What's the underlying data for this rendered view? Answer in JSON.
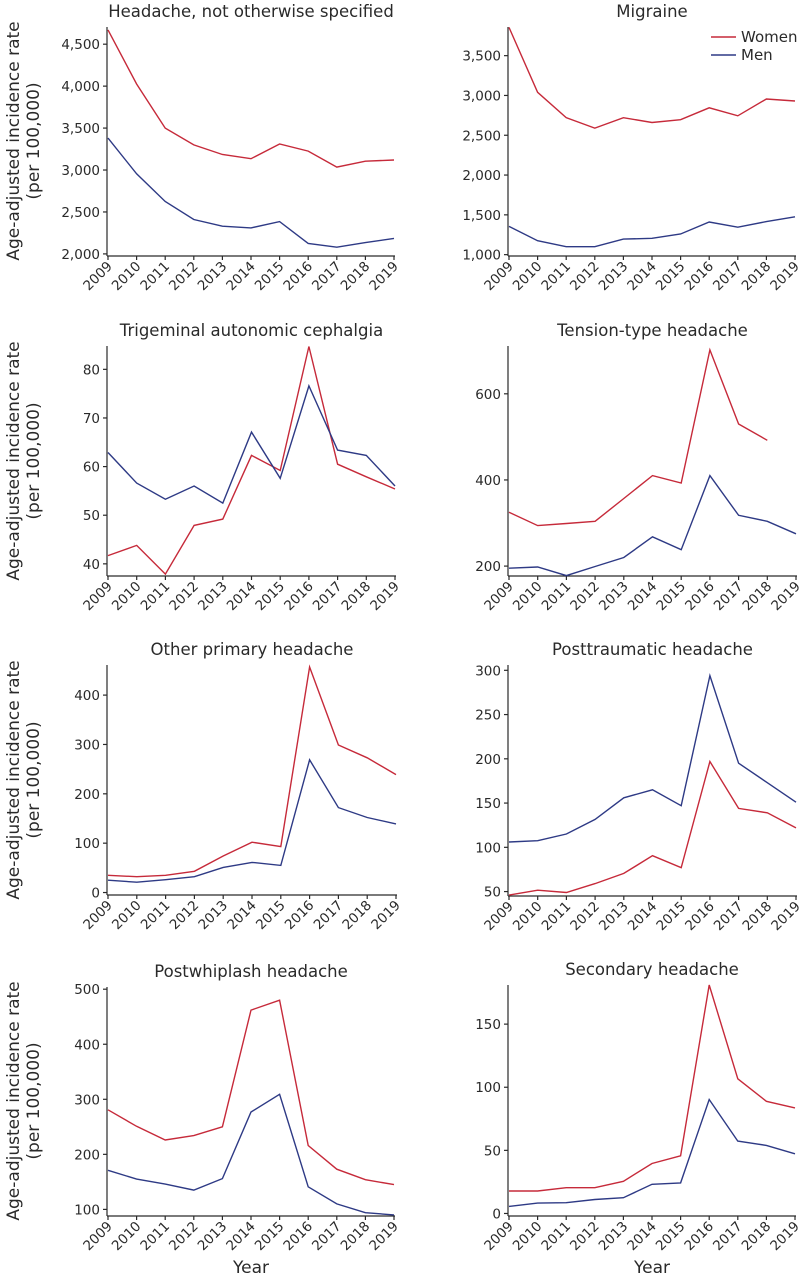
{
  "figure": {
    "y_axis_title_line1": "Age-adjusted incidence rate",
    "y_axis_title_line2": "(per 100,000)",
    "x_axis_title": "Year"
  },
  "legend": {
    "placement": "top-right of Migraine panel",
    "items": [
      {
        "label": "Women",
        "color": "#c62a3a"
      },
      {
        "label": "Men",
        "color": "#2e3a85"
      }
    ]
  },
  "chart_data": [
    {
      "type": "line",
      "title": "Headache, not otherwise specified",
      "xlabel": "",
      "ylabel": "Age-adjusted incidence rate (per 100,000)",
      "x": [
        2009,
        2010,
        2011,
        2012,
        2013,
        2014,
        2015,
        2016,
        2017,
        2018,
        2019
      ],
      "ylim": [
        1975,
        4705
      ],
      "yticks": [
        2000,
        2500,
        3000,
        3500,
        4000,
        4500
      ],
      "ytick_labels": [
        "2,000",
        "2,500",
        "3,000",
        "3,500",
        "4,000",
        "4,500"
      ],
      "grid": false,
      "series": [
        {
          "name": "Women",
          "color": "#c62a3a",
          "values": [
            4670,
            4025,
            3500,
            3300,
            3185,
            3135,
            3310,
            3225,
            3035,
            3105,
            3120
          ]
        },
        {
          "name": "Men",
          "color": "#2e3a85",
          "values": [
            3380,
            2955,
            2625,
            2410,
            2330,
            2310,
            2385,
            2125,
            2080,
            2135,
            2185
          ]
        }
      ]
    },
    {
      "type": "line",
      "title": "Migraine",
      "xlabel": "",
      "ylabel": "",
      "x": [
        2009,
        2010,
        2011,
        2012,
        2013,
        2014,
        2015,
        2016,
        2017,
        2018,
        2019
      ],
      "ylim": [
        983,
        3860
      ],
      "yticks": [
        1000,
        1500,
        2000,
        2500,
        3000,
        3500
      ],
      "ytick_labels": [
        "1,000",
        "1,500",
        "2,000",
        "2,500",
        "3,000",
        "3,500"
      ],
      "grid": false,
      "legend": "top-right",
      "series": [
        {
          "name": "Women",
          "color": "#c62a3a",
          "values": [
            3855,
            3040,
            2720,
            2590,
            2720,
            2660,
            2695,
            2845,
            2745,
            2955,
            2930
          ]
        },
        {
          "name": "Men",
          "color": "#2e3a85",
          "values": [
            1355,
            1175,
            1100,
            1100,
            1195,
            1205,
            1260,
            1410,
            1345,
            1415,
            1475
          ]
        }
      ]
    },
    {
      "type": "line",
      "title": "Trigeminal autonomic cephalgia",
      "xlabel": "",
      "ylabel": "Age-adjusted incidence rate (per 100,000)",
      "x": [
        2009,
        2010,
        2011,
        2012,
        2013,
        2014,
        2015,
        2016,
        2017,
        2018,
        2019
      ],
      "ylim": [
        37.5,
        84.8
      ],
      "yticks": [
        40,
        50,
        60,
        70,
        80
      ],
      "ytick_labels": [
        "40",
        "50",
        "60",
        "70",
        "80"
      ],
      "grid": false,
      "series": [
        {
          "name": "Women",
          "color": "#c62a3a",
          "values": [
            41.7,
            43.8,
            37.9,
            47.9,
            49.2,
            62.3,
            59.2,
            84.7,
            60.5,
            57.9,
            55.4
          ]
        },
        {
          "name": "Men",
          "color": "#2e3a85",
          "values": [
            62.9,
            56.6,
            53.3,
            56.0,
            52.5,
            67.1,
            57.6,
            76.6,
            63.4,
            62.3,
            56.0
          ]
        }
      ]
    },
    {
      "type": "line",
      "title": "Tension-type headache",
      "xlabel": "",
      "ylabel": "",
      "x": [
        2009,
        2010,
        2011,
        2012,
        2013,
        2014,
        2015,
        2016,
        2017,
        2018,
        2019
      ],
      "ylim": [
        177,
        711
      ],
      "yticks": [
        200,
        400,
        600
      ],
      "ytick_labels": [
        "200",
        "400",
        "600"
      ],
      "grid": false,
      "series": [
        {
          "name": "Women",
          "color": "#c62a3a",
          "values": [
            325,
            294,
            299,
            304,
            357,
            410,
            393,
            702,
            530,
            492,
            null
          ]
        },
        {
          "name": "Men",
          "color": "#2e3a85",
          "values": [
            195,
            198,
            178,
            199,
            220,
            268,
            238,
            410,
            318,
            304,
            275
          ]
        }
      ]
    },
    {
      "type": "line",
      "title": "Other primary headache",
      "xlabel": "",
      "ylabel": "Age-adjusted incidence rate (per 100,000)",
      "x": [
        2009,
        2010,
        2011,
        2012,
        2013,
        2014,
        2015,
        2016,
        2017,
        2018,
        2019
      ],
      "ylim": [
        -5,
        461
      ],
      "yticks": [
        0,
        100,
        200,
        300,
        400
      ],
      "ytick_labels": [
        "0",
        "100",
        "200",
        "300",
        "400"
      ],
      "grid": false,
      "series": [
        {
          "name": "Women",
          "color": "#c62a3a",
          "values": [
            35,
            32,
            35,
            43,
            74,
            102,
            93,
            457,
            299,
            273,
            239
          ]
        },
        {
          "name": "Men",
          "color": "#2e3a85",
          "values": [
            25,
            21,
            26,
            32,
            51,
            61,
            55,
            269,
            172,
            152,
            139
          ]
        }
      ]
    },
    {
      "type": "line",
      "title": "Posttraumatic headache",
      "xlabel": "",
      "ylabel": "",
      "x": [
        2009,
        2010,
        2011,
        2012,
        2013,
        2014,
        2015,
        2016,
        2017,
        2018,
        2019
      ],
      "ylim": [
        45,
        306
      ],
      "yticks": [
        50,
        100,
        150,
        200,
        250,
        300
      ],
      "ytick_labels": [
        "50",
        "100",
        "150",
        "200",
        "250",
        "300"
      ],
      "grid": false,
      "series": [
        {
          "name": "Women",
          "color": "#c62a3a",
          "values": [
            46,
            51.5,
            49,
            59,
            70.5,
            90.5,
            77,
            197,
            144,
            139,
            122
          ]
        },
        {
          "name": "Men",
          "color": "#2e3a85",
          "values": [
            106,
            107.5,
            115,
            131.5,
            156,
            165,
            147,
            294,
            195,
            173,
            151
          ]
        }
      ]
    },
    {
      "type": "line",
      "title": "Postwhiplash headache",
      "xlabel": "Year",
      "ylabel": "Age-adjusted incidence rate (per 100,000)",
      "x": [
        2009,
        2010,
        2011,
        2012,
        2013,
        2014,
        2015,
        2016,
        2017,
        2018,
        2019
      ],
      "ylim": [
        88,
        504
      ],
      "yticks": [
        100,
        200,
        300,
        400,
        500
      ],
      "ytick_labels": [
        "100",
        "200",
        "300",
        "400",
        "500"
      ],
      "grid": false,
      "series": [
        {
          "name": "Women",
          "color": "#c62a3a",
          "values": [
            281,
            251,
            226,
            234,
            250,
            462,
            480,
            216,
            173,
            154,
            145
          ]
        },
        {
          "name": "Men",
          "color": "#2e3a85",
          "values": [
            171,
            155,
            146,
            135,
            156,
            277,
            309,
            141,
            110,
            94,
            90
          ]
        }
      ]
    },
    {
      "type": "line",
      "title": "Secondary headache",
      "xlabel": "Year",
      "ylabel": "",
      "x": [
        2009,
        2010,
        2011,
        2012,
        2013,
        2014,
        2015,
        2016,
        2017,
        2018,
        2019
      ],
      "ylim": [
        -2,
        181
      ],
      "yticks": [
        0,
        50,
        100,
        150
      ],
      "ytick_labels": [
        "0",
        "50",
        "100",
        "150"
      ],
      "grid": false,
      "series": [
        {
          "name": "Women",
          "color": "#c62a3a",
          "values": [
            17.8,
            17.8,
            20.4,
            20.4,
            25.5,
            39.6,
            45.7,
            181,
            106.7,
            88.9,
            83.6
          ]
        },
        {
          "name": "Men",
          "color": "#2e3a85",
          "values": [
            5.6,
            8.2,
            8.5,
            11.1,
            12.5,
            23.1,
            24.2,
            90.3,
            57.3,
            53.9,
            47.3
          ]
        }
      ]
    }
  ]
}
